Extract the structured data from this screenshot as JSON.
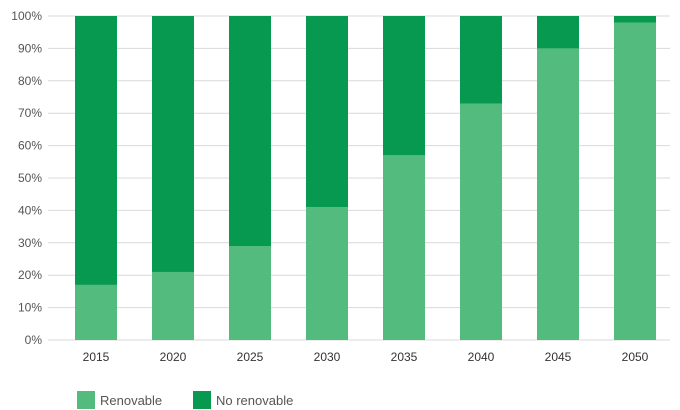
{
  "chart_data": {
    "type": "bar",
    "stacked": true,
    "categories": [
      "2015",
      "2020",
      "2025",
      "2030",
      "2035",
      "2040",
      "2045",
      "2050"
    ],
    "series": [
      {
        "name": "Renovable",
        "color": "#52bb7d",
        "values": [
          17,
          21,
          29,
          41,
          57,
          73,
          90,
          98
        ]
      },
      {
        "name": "No renovable",
        "color": "#07994f",
        "values": [
          83,
          79,
          71,
          59,
          43,
          27,
          10,
          2
        ]
      }
    ],
    "y_ticks": [
      "0%",
      "10%",
      "20%",
      "30%",
      "40%",
      "50%",
      "60%",
      "70%",
      "80%",
      "90%",
      "100%"
    ],
    "ylim": [
      0,
      100
    ],
    "grid": true,
    "legend": "bottom-left"
  }
}
